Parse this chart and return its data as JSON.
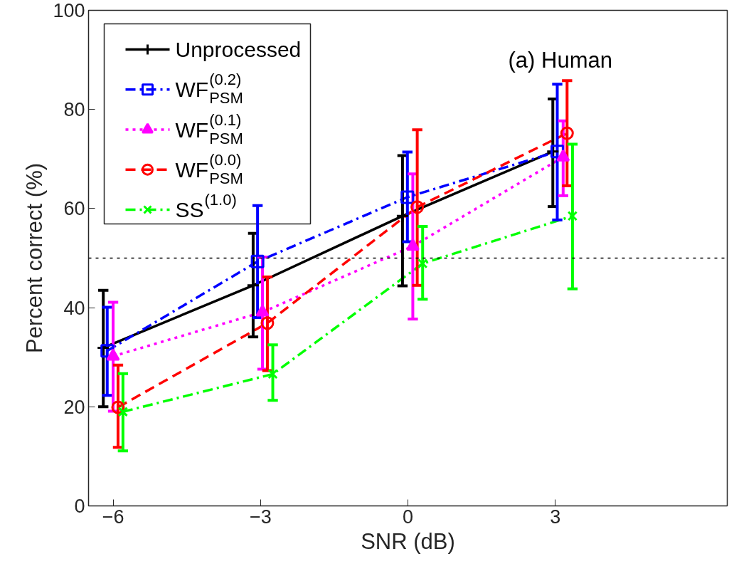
{
  "chart_data": {
    "type": "line",
    "xlabel": "SNR (dB)",
    "ylabel": "Percent correct (%)",
    "xlim": [
      -6.5,
      6.5
    ],
    "xticks": [
      -6,
      -3,
      0,
      3
    ],
    "ylim": [
      0,
      100
    ],
    "yticks": [
      0,
      20,
      40,
      60,
      80,
      100
    ],
    "grid": false,
    "legend": "top left",
    "annotations": [
      "(a) Human"
    ],
    "ref_lines": [
      {
        "axis": "y",
        "value": 50,
        "color": "#000000",
        "line_style": "dotted"
      }
    ],
    "series": [
      {
        "name": "Unprocessed",
        "color": "#000000",
        "marker": "cross",
        "line_style": "solid",
        "x": [
          -6.2,
          -3.15,
          -0.11,
          2.95
        ],
        "values": [
          31.9,
          44.5,
          58.5,
          71.5
        ],
        "errors": [
          [
            20.0,
            43.5
          ],
          [
            34.1,
            55.0
          ],
          [
            44.4,
            70.7
          ],
          [
            60.4,
            82.1
          ]
        ]
      },
      {
        "name": "WF$^{(0.2)}$$_{PSM}$",
        "color": "#0000ff",
        "marker": "square",
        "line_style": "dashdot",
        "x": [
          -6.12,
          -3.06,
          -0.01,
          3.04
        ],
        "values": [
          31.3,
          49.3,
          62.3,
          71.5
        ],
        "errors": [
          [
            22.3,
            40.1
          ],
          [
            38.0,
            60.6
          ],
          [
            53.3,
            71.4
          ],
          [
            57.7,
            85.1
          ]
        ]
      },
      {
        "name": "WF$^{(0.1)}$$_{PSM}$",
        "color": "#ff00ff",
        "marker": "triangle",
        "line_style": "dotted",
        "x": [
          -6.0,
          -2.96,
          0.1,
          3.16
        ],
        "values": [
          30.2,
          39.1,
          52.4,
          70.4
        ],
        "errors": [
          [
            19.1,
            41.1
          ],
          [
            27.6,
            50.2
          ],
          [
            37.7,
            67.0
          ],
          [
            62.6,
            77.7
          ]
        ]
      },
      {
        "name": "WF$^{(0.0)}$$_{PSM}$",
        "color": "#ff0000",
        "marker": "circle",
        "line_style": "dashed",
        "x": [
          -5.9,
          -2.86,
          0.19,
          3.24
        ],
        "values": [
          19.9,
          36.9,
          60.3,
          75.2
        ],
        "errors": [
          [
            11.8,
            28.4
          ],
          [
            27.3,
            46.2
          ],
          [
            44.5,
            75.9
          ],
          [
            64.6,
            85.8
          ]
        ]
      },
      {
        "name": "SS$^{(1.0)}$",
        "color": "#00ff00",
        "marker": "x",
        "line_style": "dashdot",
        "x": [
          -5.8,
          -2.75,
          0.3,
          3.35
        ],
        "values": [
          19.0,
          26.6,
          48.9,
          58.5
        ],
        "errors": [
          [
            11.1,
            26.7
          ],
          [
            21.3,
            32.5
          ],
          [
            41.7,
            56.4
          ],
          [
            43.8,
            73.0
          ]
        ]
      }
    ]
  }
}
